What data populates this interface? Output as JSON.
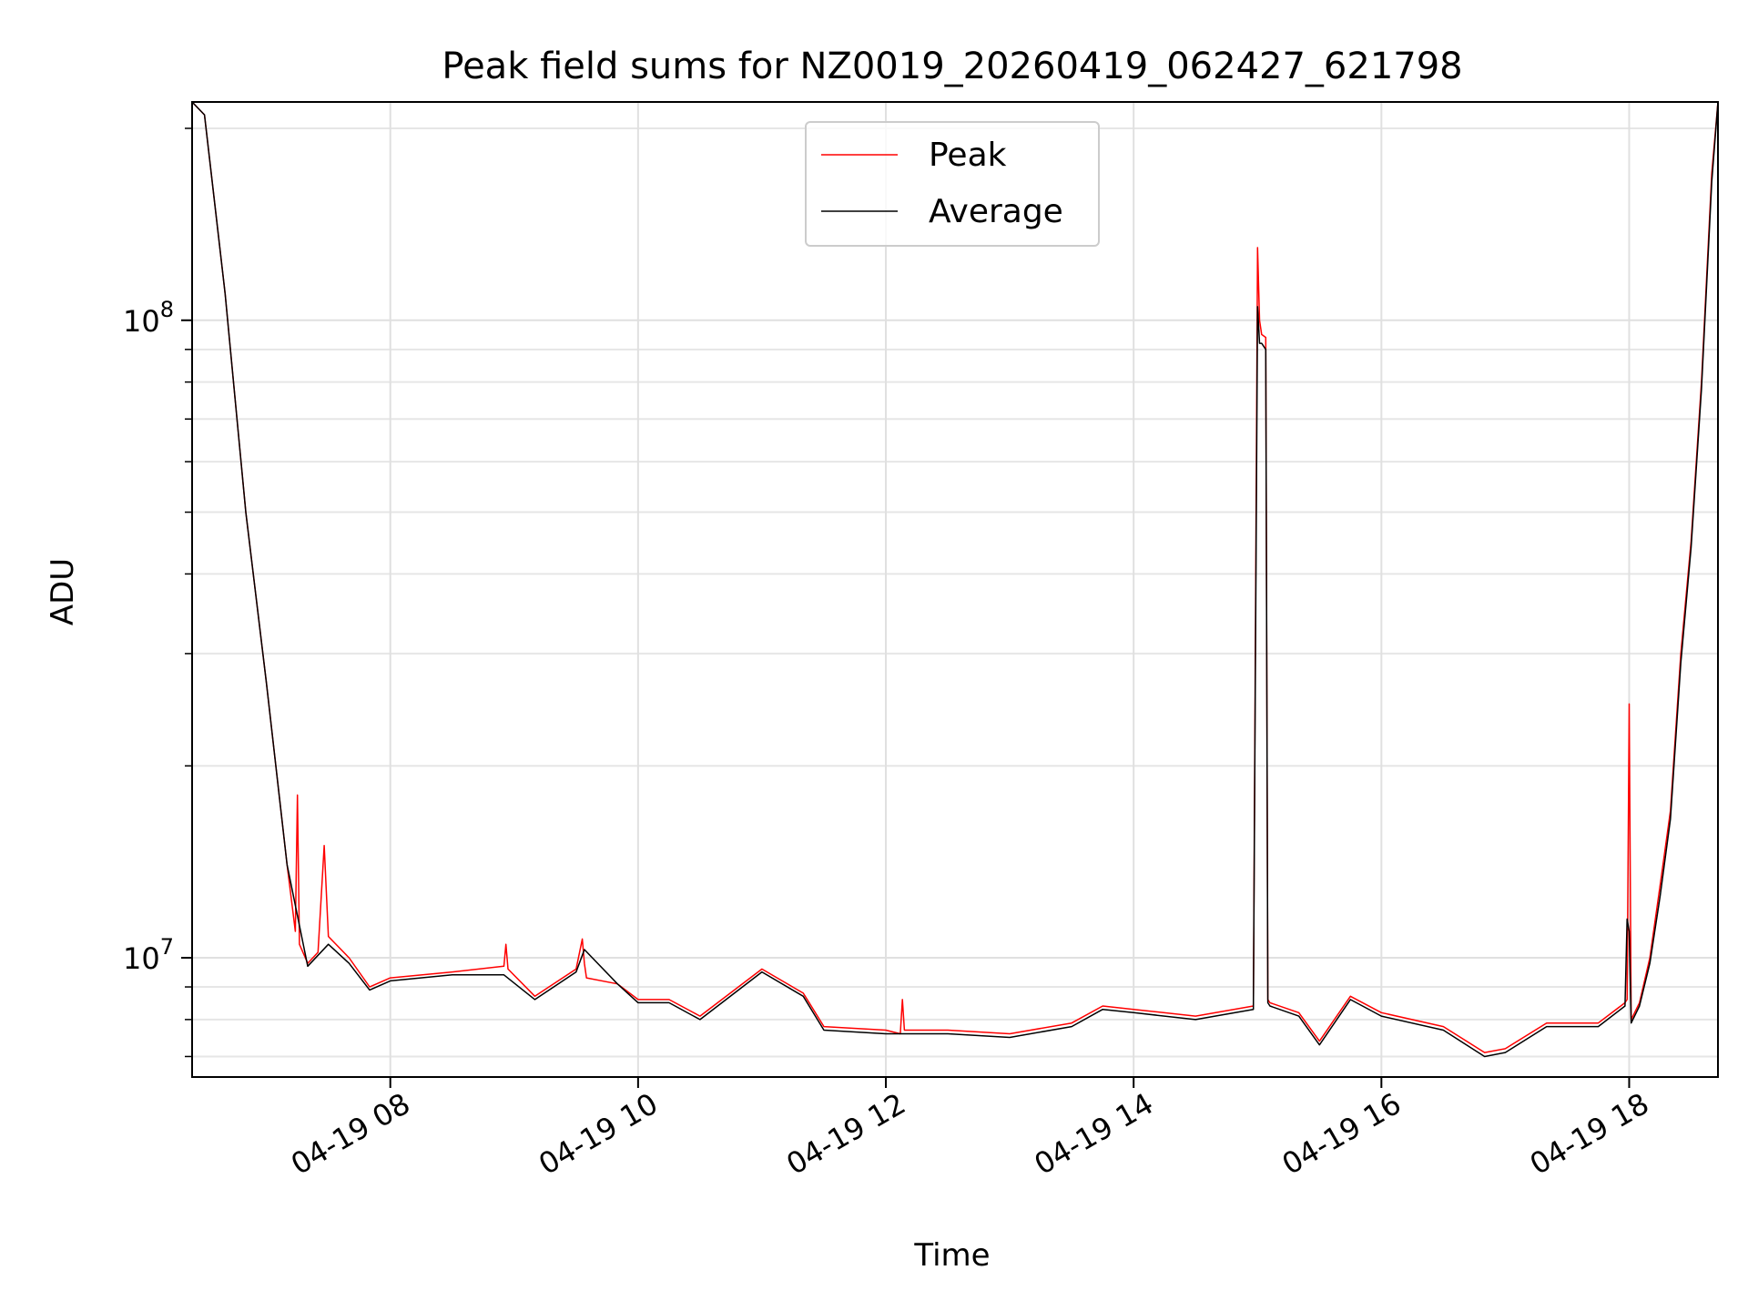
{
  "chart_data": {
    "type": "line",
    "title": "Peak field sums for NZ0019_20260419_062427_621798",
    "xlabel": "Time",
    "ylabel": "ADU",
    "y_scale": "log",
    "ylim": [
      6500000,
      220000000
    ],
    "xlim": [
      "2026-04-19 06:24",
      "2026-04-19 18:43"
    ],
    "grid": true,
    "legend_position": "top-center",
    "x_ticks": [
      {
        "t": "2026-04-19 08:00",
        "label": "04-19 08"
      },
      {
        "t": "2026-04-19 10:00",
        "label": "04-19 10"
      },
      {
        "t": "2026-04-19 12:00",
        "label": "04-19 12"
      },
      {
        "t": "2026-04-19 14:00",
        "label": "04-19 14"
      },
      {
        "t": "2026-04-19 16:00",
        "label": "04-19 16"
      },
      {
        "t": "2026-04-19 18:00",
        "label": "04-19 18"
      }
    ],
    "y_ticks": [
      {
        "value": 10000000,
        "base": "10",
        "exp": "7"
      },
      {
        "value": 100000000,
        "base": "10",
        "exp": "8"
      }
    ],
    "y_minor_ticks": [
      7000000,
      8000000,
      9000000,
      20000000,
      30000000,
      40000000,
      50000000,
      60000000,
      70000000,
      80000000,
      90000000,
      200000000
    ],
    "series": [
      {
        "name": "Peak",
        "color": "#ff0000",
        "x": [
          "2026-04-19 06:24",
          "2026-04-19 06:30",
          "2026-04-19 06:40",
          "2026-04-19 06:50",
          "2026-04-19 07:00",
          "2026-04-19 07:10",
          "2026-04-19 07:14",
          "2026-04-19 07:15",
          "2026-04-19 07:16",
          "2026-04-19 07:20",
          "2026-04-19 07:25",
          "2026-04-19 07:28",
          "2026-04-19 07:30",
          "2026-04-19 07:40",
          "2026-04-19 07:50",
          "2026-04-19 08:00",
          "2026-04-19 08:30",
          "2026-04-19 08:55",
          "2026-04-19 08:56",
          "2026-04-19 08:57",
          "2026-04-19 09:10",
          "2026-04-19 09:30",
          "2026-04-19 09:33",
          "2026-04-19 09:34",
          "2026-04-19 09:35",
          "2026-04-19 09:50",
          "2026-04-19 10:00",
          "2026-04-19 10:15",
          "2026-04-19 10:30",
          "2026-04-19 11:00",
          "2026-04-19 11:20",
          "2026-04-19 11:30",
          "2026-04-19 12:00",
          "2026-04-19 12:07",
          "2026-04-19 12:08",
          "2026-04-19 12:09",
          "2026-04-19 12:30",
          "2026-04-19 13:00",
          "2026-04-19 13:30",
          "2026-04-19 13:45",
          "2026-04-19 14:00",
          "2026-04-19 14:30",
          "2026-04-19 14:58",
          "2026-04-19 15:00",
          "2026-04-19 15:01",
          "2026-04-19 15:02",
          "2026-04-19 15:04",
          "2026-04-19 15:05",
          "2026-04-19 15:06",
          "2026-04-19 15:20",
          "2026-04-19 15:30",
          "2026-04-19 15:45",
          "2026-04-19 16:00",
          "2026-04-19 16:30",
          "2026-04-19 16:50",
          "2026-04-19 17:00",
          "2026-04-19 17:20",
          "2026-04-19 17:45",
          "2026-04-19 17:58",
          "2026-04-19 17:59",
          "2026-04-19 18:00",
          "2026-04-19 18:01",
          "2026-04-19 18:05",
          "2026-04-19 18:10",
          "2026-04-19 18:15",
          "2026-04-19 18:20",
          "2026-04-19 18:25",
          "2026-04-19 18:30",
          "2026-04-19 18:35",
          "2026-04-19 18:40",
          "2026-04-19 18:43"
        ],
        "y": [
          220000000,
          210000000,
          110000000,
          50000000,
          27000000,
          14000000,
          11000000,
          18000000,
          10500000,
          9800000,
          10200000,
          15000000,
          10800000,
          10000000,
          9000000,
          9300000,
          9500000,
          9700000,
          10500000,
          9600000,
          8700000,
          9600000,
          10700000,
          9800000,
          9300000,
          9100000,
          8600000,
          8600000,
          8100000,
          9600000,
          8800000,
          7800000,
          7700000,
          7600000,
          8600000,
          7700000,
          7700000,
          7600000,
          7900000,
          8400000,
          8300000,
          8100000,
          8400000,
          130000000,
          100000000,
          95000000,
          94000000,
          8600000,
          8500000,
          8200000,
          7400000,
          8700000,
          8200000,
          7800000,
          7100000,
          7200000,
          7900000,
          7900000,
          8500000,
          8600000,
          25000000,
          8000000,
          8500000,
          10000000,
          13000000,
          17000000,
          30000000,
          45000000,
          80000000,
          170000000,
          220000000
        ]
      },
      {
        "name": "Average",
        "color": "#000000",
        "x": [
          "2026-04-19 06:24",
          "2026-04-19 06:30",
          "2026-04-19 06:40",
          "2026-04-19 06:50",
          "2026-04-19 07:00",
          "2026-04-19 07:10",
          "2026-04-19 07:20",
          "2026-04-19 07:30",
          "2026-04-19 07:40",
          "2026-04-19 07:50",
          "2026-04-19 08:00",
          "2026-04-19 08:30",
          "2026-04-19 08:55",
          "2026-04-19 09:10",
          "2026-04-19 09:30",
          "2026-04-19 09:34",
          "2026-04-19 09:50",
          "2026-04-19 10:00",
          "2026-04-19 10:15",
          "2026-04-19 10:30",
          "2026-04-19 11:00",
          "2026-04-19 11:20",
          "2026-04-19 11:30",
          "2026-04-19 12:00",
          "2026-04-19 12:30",
          "2026-04-19 13:00",
          "2026-04-19 13:30",
          "2026-04-19 13:45",
          "2026-04-19 14:00",
          "2026-04-19 14:30",
          "2026-04-19 14:58",
          "2026-04-19 15:00",
          "2026-04-19 15:01",
          "2026-04-19 15:02",
          "2026-04-19 15:04",
          "2026-04-19 15:05",
          "2026-04-19 15:06",
          "2026-04-19 15:20",
          "2026-04-19 15:30",
          "2026-04-19 15:45",
          "2026-04-19 16:00",
          "2026-04-19 16:30",
          "2026-04-19 16:50",
          "2026-04-19 17:00",
          "2026-04-19 17:20",
          "2026-04-19 17:45",
          "2026-04-19 17:58",
          "2026-04-19 17:59",
          "2026-04-19 18:00",
          "2026-04-19 18:01",
          "2026-04-19 18:05",
          "2026-04-19 18:10",
          "2026-04-19 18:15",
          "2026-04-19 18:20",
          "2026-04-19 18:25",
          "2026-04-19 18:30",
          "2026-04-19 18:35",
          "2026-04-19 18:40",
          "2026-04-19 18:43"
        ],
        "y": [
          220000000,
          210000000,
          110000000,
          50000000,
          27000000,
          14000000,
          9700000,
          10500000,
          9800000,
          8900000,
          9200000,
          9400000,
          9400000,
          8600000,
          9500000,
          10300000,
          9100000,
          8500000,
          8500000,
          8000000,
          9500000,
          8700000,
          7700000,
          7600000,
          7600000,
          7500000,
          7800000,
          8300000,
          8200000,
          8000000,
          8300000,
          105000000,
          92000000,
          92000000,
          90000000,
          8500000,
          8400000,
          8100000,
          7300000,
          8600000,
          8100000,
          7700000,
          7000000,
          7100000,
          7800000,
          7800000,
          8400000,
          11500000,
          11000000,
          7900000,
          8400000,
          9800000,
          12500000,
          16500000,
          29000000,
          44000000,
          78000000,
          165000000,
          220000000
        ]
      }
    ]
  }
}
